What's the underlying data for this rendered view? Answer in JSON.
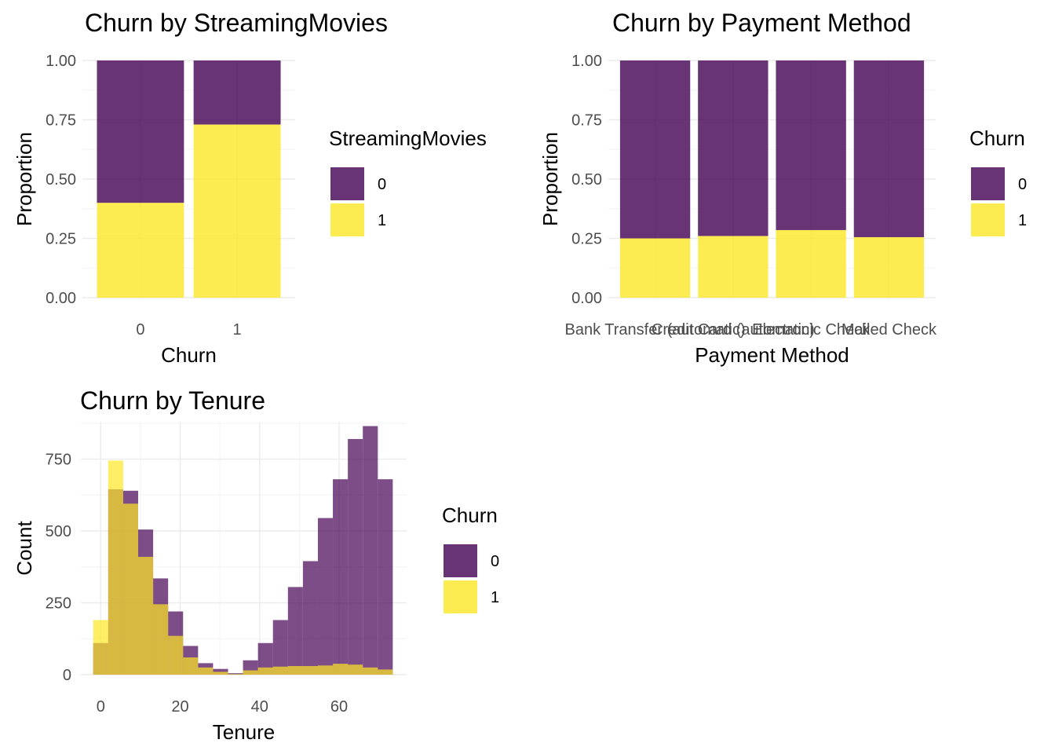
{
  "colors": {
    "churn0": "#440154",
    "churn1": "#FDE725"
  },
  "chart_data": [
    {
      "id": "streaming",
      "type": "bar",
      "stacked": "fill",
      "title": "Churn by StreamingMovies",
      "xlabel": "Churn",
      "ylabel": "Proportion",
      "categories": [
        "0",
        "1"
      ],
      "ylim": [
        0,
        1
      ],
      "yticks": [
        "0.00",
        "0.25",
        "0.50",
        "0.75",
        "1.00"
      ],
      "legend": {
        "title": "StreamingMovies",
        "labels": [
          "0",
          "1"
        ],
        "position": "right"
      },
      "series": [
        {
          "name": "0",
          "values": [
            0.6,
            0.27
          ]
        },
        {
          "name": "1",
          "values": [
            0.4,
            0.73
          ]
        }
      ],
      "grid": true
    },
    {
      "id": "payment",
      "type": "bar",
      "stacked": "fill",
      "title": "Churn by Payment Method",
      "xlabel": "Payment Method",
      "ylabel": "Proportion",
      "categories": [
        "Bank Transfer (automatic)",
        "Credit Card (automatic)",
        "Electronic Check",
        "Mailed Check"
      ],
      "ylim": [
        0,
        1
      ],
      "yticks": [
        "0.00",
        "0.25",
        "0.50",
        "0.75",
        "1.00"
      ],
      "legend": {
        "title": "Churn",
        "labels": [
          "0",
          "1"
        ],
        "position": "right"
      },
      "series": [
        {
          "name": "0",
          "values": [
            0.75,
            0.74,
            0.715,
            0.745
          ]
        },
        {
          "name": "1",
          "values": [
            0.25,
            0.26,
            0.285,
            0.255
          ]
        }
      ],
      "grid": true
    },
    {
      "id": "tenure",
      "type": "histogram",
      "title": "Churn by Tenure",
      "xlabel": "Tenure",
      "ylabel": "Count",
      "xlim": [
        -5,
        77
      ],
      "ylim": [
        0,
        880
      ],
      "xticks": [
        "0",
        "20",
        "40",
        "60"
      ],
      "yticks": [
        "0",
        "250",
        "500",
        "750"
      ],
      "bin_width": 3.77,
      "bin_centers": [
        0.0,
        3.77,
        7.54,
        11.31,
        15.08,
        18.85,
        22.62,
        26.39,
        30.16,
        33.93,
        37.7,
        41.47,
        45.24,
        49.01,
        52.78,
        56.55,
        60.32,
        64.09,
        67.86,
        71.63
      ],
      "legend": {
        "title": "Churn",
        "labels": [
          "0",
          "1"
        ],
        "position": "right"
      },
      "series": [
        {
          "name": "0",
          "values": [
            110,
            645,
            640,
            505,
            335,
            220,
            100,
            40,
            20,
            5,
            50,
            110,
            190,
            305,
            395,
            545,
            680,
            820,
            865,
            680
          ]
        },
        {
          "name": "1",
          "values": [
            190,
            745,
            595,
            410,
            245,
            135,
            60,
            25,
            10,
            2,
            15,
            25,
            28,
            30,
            30,
            32,
            38,
            35,
            25,
            18
          ]
        }
      ],
      "grid": true
    }
  ]
}
